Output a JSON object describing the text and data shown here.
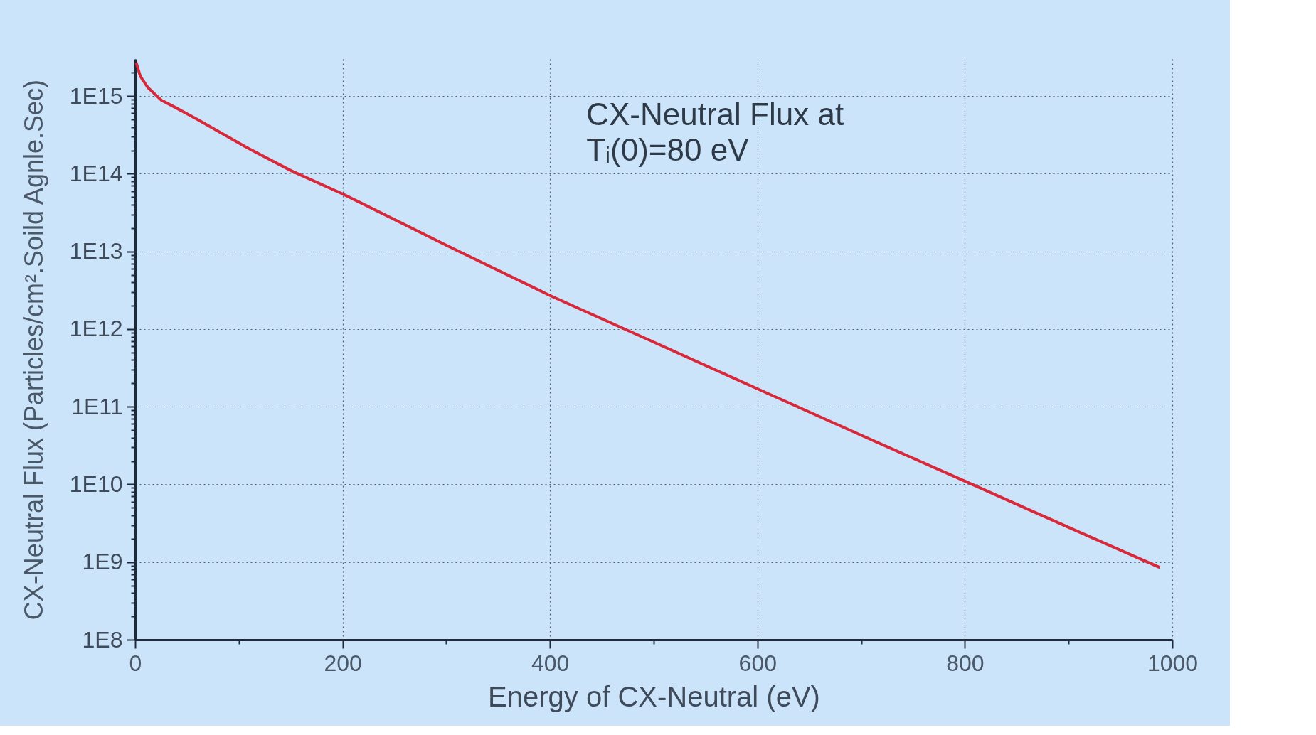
{
  "chart_data": {
    "type": "line",
    "xlabel": "Energy of CX-Neutral (eV)",
    "ylabel": "CX-Neutral Flux (Particles/cm².Soild Agnle.Sec)",
    "annotations": [
      "CX-Neutral Flux at\nTᵢ(0)=80 eV"
    ],
    "x": [
      1,
      5,
      12,
      25,
      39,
      60,
      107,
      150,
      200,
      300,
      400,
      500,
      600,
      700,
      800,
      900,
      988
    ],
    "series": [
      {
        "color": "#d8283a",
        "values": [
          2700000000000000.0,
          1800000000000000.0,
          1300000000000000.0,
          890000000000000.0,
          710000000000000.0,
          500000000000000.0,
          220000000000000.0,
          110000000000000.0,
          55000000000000.0,
          12000000000000.0,
          2700000000000.0,
          680000000000.0,
          170000000000.0,
          43000000000.0,
          11000000000.0,
          2800000000.0,
          850000000.0
        ]
      }
    ],
    "log": "y",
    "grid": true,
    "marker": "none",
    "line_style": "solid",
    "xlim": [
      0,
      1000
    ],
    "ylim": [
      100000000.0,
      3000000000000000.0
    ],
    "xticks": [
      0,
      {
        "value": 100,
        "label": null
      },
      200,
      {
        "value": 300,
        "label": null
      },
      400,
      {
        "value": 500,
        "label": null
      },
      600,
      {
        "value": 700,
        "label": null
      },
      800,
      {
        "value": 900,
        "label": null
      },
      1000
    ],
    "yticks": [
      {
        "value": 100000000.0,
        "label": "1E8"
      },
      {
        "value": 200000000.0,
        "label": null
      },
      {
        "value": 300000000.0,
        "label": null
      },
      {
        "value": 400000000.0,
        "label": null
      },
      {
        "value": 500000000.0,
        "label": null
      },
      {
        "value": 600000000.0,
        "label": null
      },
      {
        "value": 700000000.0,
        "label": null
      },
      {
        "value": 800000000.0,
        "label": null
      },
      {
        "value": 900000000.0,
        "label": null
      },
      {
        "value": 1000000000.0,
        "label": "1E9"
      },
      {
        "value": 2000000000.0,
        "label": null
      },
      {
        "value": 3000000000.0,
        "label": null
      },
      {
        "value": 4000000000.0,
        "label": null
      },
      {
        "value": 5000000000.0,
        "label": null
      },
      {
        "value": 6000000000.0,
        "label": null
      },
      {
        "value": 7000000000.0,
        "label": null
      },
      {
        "value": 8000000000.0,
        "label": null
      },
      {
        "value": 9000000000.0,
        "label": null
      },
      {
        "value": 10000000000.0,
        "label": "1E10"
      },
      {
        "value": 20000000000.0,
        "label": null
      },
      {
        "value": 30000000000.0,
        "label": null
      },
      {
        "value": 40000000000.0,
        "label": null
      },
      {
        "value": 50000000000.0,
        "label": null
      },
      {
        "value": 60000000000.0,
        "label": null
      },
      {
        "value": 70000000000.0,
        "label": null
      },
      {
        "value": 80000000000.0,
        "label": null
      },
      {
        "value": 90000000000.0,
        "label": null
      },
      {
        "value": 100000000000.0,
        "label": "1E11"
      },
      {
        "value": 200000000000.0,
        "label": null
      },
      {
        "value": 300000000000.0,
        "label": null
      },
      {
        "value": 400000000000.0,
        "label": null
      },
      {
        "value": 500000000000.0,
        "label": null
      },
      {
        "value": 600000000000.0,
        "label": null
      },
      {
        "value": 700000000000.0,
        "label": null
      },
      {
        "value": 800000000000.0,
        "label": null
      },
      {
        "value": 900000000000.0,
        "label": null
      },
      {
        "value": 1000000000000.0,
        "label": "1E12"
      },
      {
        "value": 2000000000000.0,
        "label": null
      },
      {
        "value": 3000000000000.0,
        "label": null
      },
      {
        "value": 4000000000000.0,
        "label": null
      },
      {
        "value": 5000000000000.0,
        "label": null
      },
      {
        "value": 6000000000000.0,
        "label": null
      },
      {
        "value": 7000000000000.0,
        "label": null
      },
      {
        "value": 8000000000000.0,
        "label": null
      },
      {
        "value": 9000000000000.0,
        "label": null
      },
      {
        "value": 10000000000000.0,
        "label": "1E13"
      },
      {
        "value": 20000000000000.0,
        "label": null
      },
      {
        "value": 30000000000000.0,
        "label": null
      },
      {
        "value": 40000000000000.0,
        "label": null
      },
      {
        "value": 50000000000000.0,
        "label": null
      },
      {
        "value": 60000000000000.0,
        "label": null
      },
      {
        "value": 70000000000000.0,
        "label": null
      },
      {
        "value": 80000000000000.0,
        "label": null
      },
      {
        "value": 90000000000000.0,
        "label": null
      },
      {
        "value": 100000000000000.0,
        "label": "1E14"
      },
      {
        "value": 200000000000000.0,
        "label": null
      },
      {
        "value": 300000000000000.0,
        "label": null
      },
      {
        "value": 400000000000000.0,
        "label": null
      },
      {
        "value": 500000000000000.0,
        "label": null
      },
      {
        "value": 600000000000000.0,
        "label": null
      },
      {
        "value": 700000000000000.0,
        "label": null
      },
      {
        "value": 800000000000000.0,
        "label": null
      },
      {
        "value": 900000000000000.0,
        "label": null
      },
      {
        "value": 1000000000000000.0,
        "label": "1E15"
      },
      {
        "value": 2000000000000000.0,
        "label": null
      }
    ]
  }
}
